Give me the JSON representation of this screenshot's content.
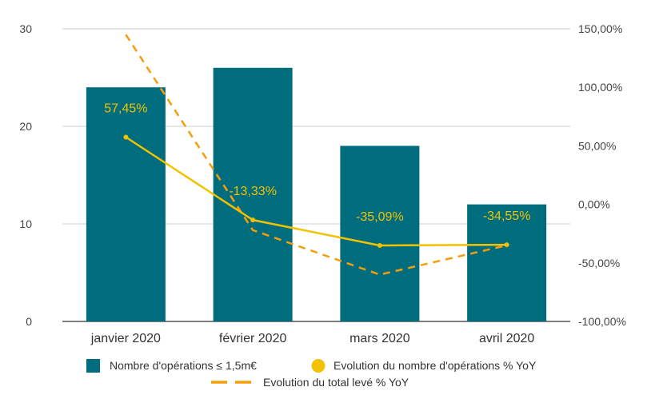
{
  "chart_data": {
    "type": "bar",
    "categories": [
      "janvier 2020",
      "février 2020",
      "mars 2020",
      "avril 2020"
    ],
    "series": [
      {
        "name": "Nombre d'opérations ≤ 1,5m€",
        "type": "bar",
        "axis": "left",
        "color": "#006D7E",
        "values": [
          24,
          26,
          18,
          12
        ]
      },
      {
        "name": "Evolution du nombre d'opérations % YoY",
        "type": "line",
        "axis": "right",
        "color": "#F2C200",
        "values": [
          57.45,
          -13.33,
          -35.09,
          -34.55
        ],
        "data_labels": [
          "57,45%",
          "-13,33%",
          "-35,09%",
          "-34,55%"
        ]
      },
      {
        "name": "Evolution du total levé % YoY",
        "type": "line",
        "style": "dashed",
        "axis": "right",
        "color": "#F59E0B",
        "values": [
          145,
          -22,
          -60,
          -35
        ]
      }
    ],
    "y_left": {
      "ylim": [
        0,
        30
      ],
      "ticks": [
        0,
        10,
        20,
        30
      ],
      "tick_labels": [
        "0",
        "10",
        "20",
        "30"
      ]
    },
    "y_right": {
      "ylim": [
        -100,
        150
      ],
      "ticks": [
        -100,
        -50,
        0,
        50,
        100,
        150
      ],
      "tick_labels": [
        "-100,00%",
        "-50,00%",
        "0,00%",
        "50,00%",
        "100,00%",
        "150,00%"
      ]
    },
    "grid": true,
    "legend_position": "bottom",
    "title": "",
    "xlabel": "",
    "ylabel": ""
  }
}
